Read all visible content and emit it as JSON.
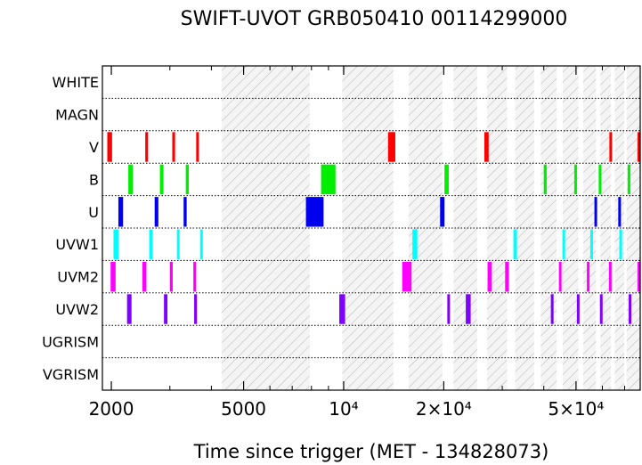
{
  "chart_data": {
    "type": "timeline",
    "title": "SWIFT-UVOT GRB050410 00114299000",
    "xlabel": "Time since trigger (MET - 134828073)",
    "xscale": "log",
    "xlim": [
      1880,
      78000
    ],
    "xtick_labels": [
      {
        "value": 2000,
        "label": "2000"
      },
      {
        "value": 5000,
        "label": "5000"
      },
      {
        "value": 10000,
        "label": "10⁴"
      },
      {
        "value": 20000,
        "label": "2×10⁴"
      },
      {
        "value": 50000,
        "label": "5×10⁴"
      }
    ],
    "minor_ticks": [
      3000,
      4000,
      6000,
      7000,
      8000,
      9000,
      30000,
      40000,
      60000,
      70000
    ],
    "filters": [
      "WHITE",
      "MAGN",
      "V",
      "B",
      "U",
      "UVW1",
      "UVM2",
      "UVW2",
      "UGRISM",
      "VGRISM"
    ],
    "filter_colors": {
      "V": "#ff0000",
      "B": "#00ee00",
      "U": "#0000ee",
      "UVW1": "#00ffff",
      "UVM2": "#ff00ff",
      "UVW2": "#8000ff"
    },
    "hatched_intervals": [
      [
        4300,
        7900
      ],
      [
        9900,
        14100
      ],
      [
        15700,
        19800
      ],
      [
        21400,
        25200
      ],
      [
        27000,
        31000
      ],
      [
        32800,
        37400
      ],
      [
        39200,
        43700
      ],
      [
        45600,
        50800
      ],
      [
        52600,
        57400
      ],
      [
        59200,
        63600
      ],
      [
        65400,
        69800
      ],
      [
        71000,
        78000
      ]
    ],
    "exposures": {
      "V": [
        [
          1945,
          2010
        ],
        [
          2530,
          2580
        ],
        [
          3050,
          3110
        ],
        [
          3600,
          3660
        ],
        [
          13600,
          14300
        ],
        [
          26500,
          27300
        ],
        [
          63000,
          63700
        ],
        [
          77000,
          77600
        ]
      ],
      "B": [
        [
          2250,
          2320
        ],
        [
          2800,
          2870
        ],
        [
          3350,
          3420
        ],
        [
          8550,
          9450
        ],
        [
          20100,
          20700
        ],
        [
          40000,
          40800
        ],
        [
          49400,
          50200
        ],
        [
          58500,
          59200
        ],
        [
          71500,
          72200
        ]
      ],
      "U": [
        [
          2100,
          2170
        ],
        [
          2700,
          2770
        ],
        [
          3300,
          3370
        ],
        [
          7700,
          8700
        ],
        [
          19500,
          20100
        ],
        [
          56800,
          57500
        ],
        [
          67000,
          67700
        ]
      ],
      "UVW1": [
        [
          2030,
          2100
        ],
        [
          2600,
          2660
        ],
        [
          3150,
          3210
        ],
        [
          3700,
          3770
        ],
        [
          16100,
          16650
        ],
        [
          32400,
          33200
        ],
        [
          45500,
          46200
        ],
        [
          55200,
          55900
        ],
        [
          67500,
          68000
        ]
      ],
      "UVM2": [
        [
          1990,
          2060
        ],
        [
          2480,
          2550
        ],
        [
          3000,
          3060
        ],
        [
          3530,
          3600
        ],
        [
          15000,
          16000
        ],
        [
          27100,
          27900
        ],
        [
          30600,
          31400
        ],
        [
          44400,
          45100
        ],
        [
          53900,
          54600
        ],
        [
          62800,
          63500
        ],
        [
          77400,
          78000
        ]
      ],
      "UVW2": [
        [
          2230,
          2300
        ],
        [
          2880,
          2950
        ],
        [
          3550,
          3620
        ],
        [
          9700,
          10100
        ],
        [
          20500,
          20800
        ],
        [
          23300,
          24100
        ],
        [
          42000,
          42800
        ],
        [
          50300,
          51000
        ],
        [
          59000,
          59700
        ],
        [
          72000,
          72700
        ]
      ]
    }
  }
}
